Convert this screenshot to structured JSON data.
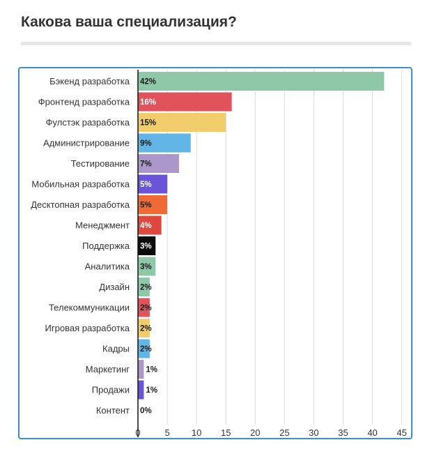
{
  "title": "Какова ваша специализация?",
  "chart_data": {
    "type": "bar",
    "orientation": "horizontal",
    "categories": [
      "Бэкенд разработка",
      "Фронтенд разработка",
      "Фулстэк разработка",
      "Администрирование",
      "Тестирование",
      "Мобильная разработка",
      "Десктопная разработка",
      "Менеджмент",
      "Поддержка",
      "Аналитика",
      "Дизайн",
      "Телекоммуникации",
      "Игровая разработка",
      "Кадры",
      "Маркетинг",
      "Продажи",
      "Контент"
    ],
    "values": [
      42,
      16,
      15,
      9,
      7,
      5,
      5,
      4,
      3,
      3,
      2,
      2,
      2,
      2,
      1,
      1,
      0
    ],
    "data_labels": [
      "42%",
      "16%",
      "15%",
      "9%",
      "7%",
      "5%",
      "5%",
      "4%",
      "3%",
      "3%",
      "2%",
      "2%",
      "2%",
      "2%",
      "1%",
      "1%",
      "0%"
    ],
    "colors": [
      "#8fc8a9",
      "#e0535c",
      "#f0cd6a",
      "#62b6e6",
      "#ab97c9",
      "#6a55d8",
      "#ef6a35",
      "#e0473d",
      "#0b0b0b",
      "#8fc8a9",
      "#8fc8a9",
      "#e0535c",
      "#f0cd6a",
      "#62b6e6",
      "#ab97c9",
      "#6a55d8",
      "#8fc8a9"
    ],
    "label_colors": [
      "#1a1a1a",
      "#ffffff",
      "#1a1a1a",
      "#1a1a1a",
      "#1a1a1a",
      "#ffffff",
      "#1a1a1a",
      "#ffffff",
      "#ffffff",
      "#1a1a1a",
      "#1a1a1a",
      "#1a1a1a",
      "#1a1a1a",
      "#1a1a1a",
      "#1a1a1a",
      "#1a1a1a",
      "#1a1a1a"
    ],
    "xticks": [
      0,
      5,
      10,
      15,
      20,
      25,
      30,
      35,
      40,
      45
    ],
    "xlim": [
      0,
      43.5
    ],
    "grid": true,
    "title": "",
    "xlabel": "",
    "ylabel": ""
  }
}
